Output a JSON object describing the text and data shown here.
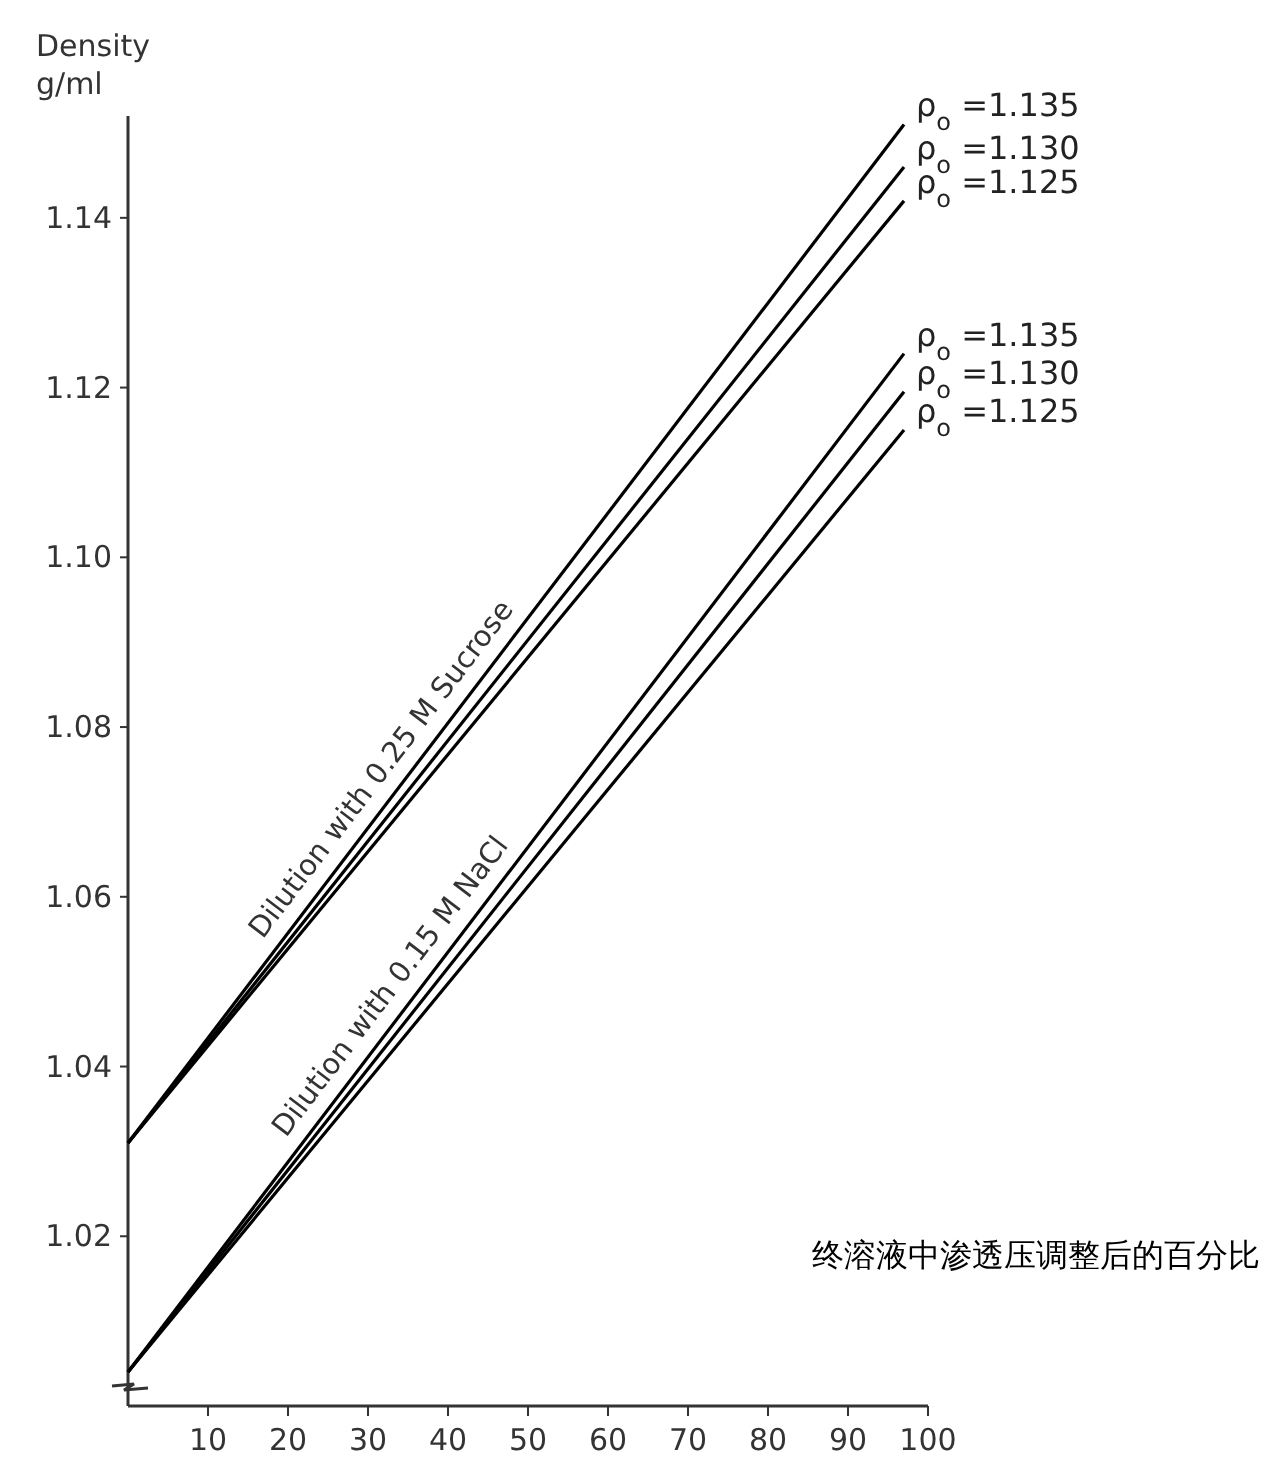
{
  "chart_data": {
    "type": "line",
    "ylabel": "Density\ng/ml",
    "xlabel": "终溶液中渗透压调整后的百分比",
    "x": [
      0,
      97
    ],
    "xlim": [
      0,
      100
    ],
    "ylim": [
      1.0,
      1.152
    ],
    "xticks": [
      10,
      20,
      30,
      40,
      50,
      60,
      70,
      80,
      90,
      100
    ],
    "yticks": [
      {
        "value": 1.02,
        "label": "1.02"
      },
      {
        "value": 1.04,
        "label": "1.04"
      },
      {
        "value": 1.06,
        "label": "1.06"
      },
      {
        "value": 1.08,
        "label": "1.08"
      },
      {
        "value": 1.1,
        "label": "1.10"
      },
      {
        "value": 1.12,
        "label": "1.12"
      },
      {
        "value": 1.14,
        "label": "1.14"
      }
    ],
    "grid": false,
    "legend": false,
    "marker": "none",
    "line_style": "solid",
    "series": [
      {
        "name": "ρ$_{o}$ =1.135",
        "color": "#000000",
        "values": [
          1.031,
          1.151
        ]
      },
      {
        "name": "ρ$_{o}$ =1.130",
        "color": "#000000",
        "values": [
          1.031,
          1.146
        ]
      },
      {
        "name": "ρ$_{o}$ =1.125",
        "color": "#000000",
        "values": [
          1.031,
          1.142
        ]
      },
      {
        "name": "ρ$_{o}$ =1.135",
        "color": "#000000",
        "values": [
          1.004,
          1.124
        ]
      },
      {
        "name": "ρ$_{o}$ =1.130",
        "color": "#000000",
        "values": [
          1.004,
          1.1195
        ]
      },
      {
        "name": "ρ$_{o}$ =1.125",
        "color": "#000000",
        "values": [
          1.004,
          1.115
        ]
      }
    ],
    "annotations": [
      "Dilution with 0.25 M Sucrose",
      "Dilution with 0.15 M NaCl"
    ]
  }
}
